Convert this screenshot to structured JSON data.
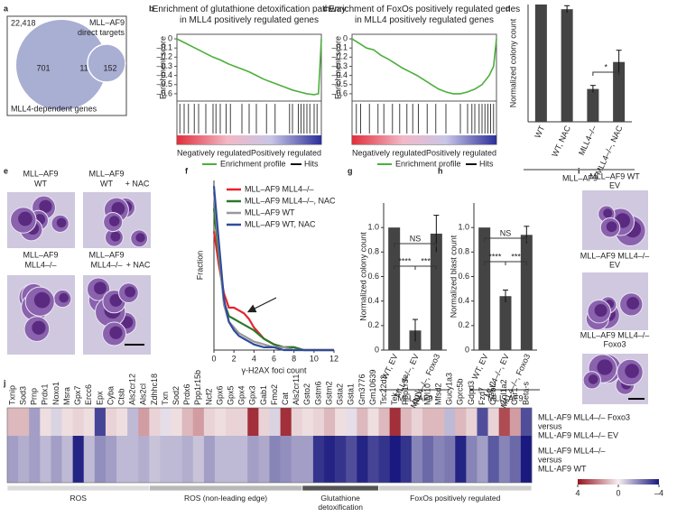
{
  "panel_labels": [
    "a",
    "b",
    "c",
    "d",
    "e",
    "f",
    "g",
    "h",
    "i",
    "j"
  ],
  "venn": {
    "total": "22,418",
    "targets_label": "MLL–AF9 direct targets",
    "dependent_label": "MLL4-dependent genes",
    "counts": [
      701,
      11,
      152
    ]
  },
  "micrographs_e": {
    "labels": [
      [
        "MLL–AF9",
        "WT"
      ],
      [
        "MLL–AF9",
        "WT"
      ],
      [
        "MLL–AF9",
        "MLL4–/–"
      ],
      [
        "MLL–AF9",
        "MLL4–/–"
      ]
    ],
    "treatments": [
      "+ NAC",
      "+ NAC"
    ]
  },
  "micrographs_i": {
    "labels": [
      [
        "MLL–AF9 WT",
        "EV"
      ],
      [
        "MLL–AF9 MLL4–/–",
        "EV"
      ],
      [
        "MLL–AF9 MLL4–/–",
        "Foxo3"
      ]
    ]
  },
  "chart_data": [
    {
      "type": "gsea",
      "title": "Enrichment of glutathione detoxification pathway  in MLL4 positively regulated genes",
      "ylabel": "Enrichment score",
      "x": [
        0,
        5,
        10,
        15,
        20,
        25,
        30,
        35,
        40,
        45,
        50,
        55,
        60,
        65,
        70,
        75,
        80,
        85,
        90,
        95,
        98,
        100
      ],
      "values": [
        0,
        -0.04,
        -0.08,
        -0.12,
        -0.16,
        -0.2,
        -0.23,
        -0.27,
        -0.3,
        -0.33,
        -0.36,
        -0.4,
        -0.44,
        -0.47,
        -0.5,
        -0.53,
        -0.56,
        -0.58,
        -0.6,
        -0.61,
        -0.6,
        0
      ],
      "hits": [
        2,
        5,
        8,
        12,
        15,
        20,
        25,
        27,
        30,
        34,
        37,
        45,
        50,
        55,
        62,
        68,
        78,
        80,
        84,
        86,
        88,
        90,
        92,
        95,
        97
      ],
      "xlim": [
        0,
        100
      ],
      "ylim": [
        -0.68,
        0.05
      ],
      "yticks": [
        0,
        {
          "value": -0.1,
          "label": "–0.1"
        },
        {
          "value": -0.2,
          "label": "–0.2"
        },
        {
          "value": -0.3,
          "label": "–0.3"
        },
        {
          "value": -0.4,
          "label": "–0.4"
        },
        {
          "value": -0.5,
          "label": "–0.5"
        },
        {
          "value": -0.6,
          "label": "–0.6"
        }
      ],
      "color": "#4caf3c",
      "legend": {
        "negative": "Negatively regulated",
        "positive": "Positively regulated",
        "profile": "Enrichment profile",
        "hits": "Hits"
      }
    },
    {
      "type": "gsea",
      "title": "Enrichment of FoxOs positively regulated genes in MLL4 positively regulated genes",
      "ylabel": "Enrichment score",
      "x": [
        0,
        5,
        10,
        15,
        20,
        25,
        30,
        35,
        40,
        45,
        50,
        55,
        60,
        65,
        70,
        75,
        80,
        85,
        90,
        95,
        98,
        100
      ],
      "values": [
        0,
        -0.05,
        -0.1,
        -0.12,
        -0.18,
        -0.22,
        -0.27,
        -0.32,
        -0.36,
        -0.4,
        -0.45,
        -0.5,
        -0.55,
        -0.58,
        -0.6,
        -0.6,
        -0.58,
        -0.55,
        -0.5,
        -0.4,
        -0.3,
        0
      ],
      "hits": [
        3,
        6,
        12,
        18,
        22,
        28,
        33,
        38,
        42,
        46,
        52,
        58,
        65,
        75,
        80,
        83,
        85,
        88,
        90,
        92,
        94,
        96,
        98
      ],
      "xlim": [
        0,
        100
      ],
      "ylim": [
        -0.68,
        0.05
      ],
      "yticks": [
        0,
        {
          "value": -0.1,
          "label": "–0.1"
        },
        {
          "value": -0.2,
          "label": "–0.2"
        },
        {
          "value": -0.3,
          "label": "–0.3"
        },
        {
          "value": -0.4,
          "label": "–0.4"
        },
        {
          "value": -0.5,
          "label": "–0.5"
        },
        {
          "value": -0.6,
          "label": "–0.6"
        }
      ],
      "color": "#4caf3c",
      "legend": {
        "negative": "Negatively regulated",
        "positive": "Positively regulated",
        "profile": "Enrichment profile",
        "hits": "Hits"
      }
    },
    {
      "type": "bar",
      "ylabel": "Normalized colony count",
      "categories": [
        "WT",
        "WT, NAC",
        "MLL4–/–",
        "MLL4–/–, NAC"
      ],
      "values": [
        1.0,
        0.96,
        0.28,
        0.51
      ],
      "errors": [
        0,
        0.03,
        0.03,
        0.1
      ],
      "ylim": [
        0,
        1
      ],
      "color": "#444444",
      "group": "MLL–AF9",
      "annotations": [
        "*"
      ]
    },
    {
      "type": "line",
      "ylabel": "Fraction",
      "xlabel": "γ-H2AX foci count",
      "x": [
        0,
        0.5,
        1,
        1.5,
        2,
        2.5,
        3,
        3.5,
        4,
        5,
        6,
        7,
        8,
        9,
        10,
        11,
        12
      ],
      "xlim": [
        0,
        12
      ],
      "xticks": [
        0,
        2,
        4,
        6,
        8,
        10,
        12
      ],
      "ylim": [
        0,
        0.6
      ],
      "series": [
        {
          "name": "MLL–AF9 MLL4–/–",
          "color": "#e8232d",
          "values": [
            0.42,
            0.3,
            0.2,
            0.15,
            0.15,
            0.14,
            0.13,
            0.11,
            0.08,
            0.04,
            0.02,
            0.01,
            0.01,
            0,
            0,
            0,
            0
          ]
        },
        {
          "name": "MLL–AF9 MLL4–/–, NAC",
          "color": "#2a7a2a",
          "values": [
            0.5,
            0.33,
            0.17,
            0.12,
            0.11,
            0.1,
            0.09,
            0.08,
            0.07,
            0.04,
            0.02,
            0.01,
            0.01,
            0,
            0,
            0,
            0
          ]
        },
        {
          "name": "MLL–AF9 WT",
          "color": "#999999",
          "values": [
            0.56,
            0.35,
            0.16,
            0.1,
            0.08,
            0.06,
            0.05,
            0.04,
            0.03,
            0.02,
            0.01,
            0.01,
            0,
            0,
            0,
            0,
            0
          ]
        },
        {
          "name": "MLL–AF9 WT, NAC",
          "color": "#2f4c9c",
          "values": [
            0.58,
            0.38,
            0.18,
            0.1,
            0.07,
            0.05,
            0.04,
            0.03,
            0.02,
            0.01,
            0.01,
            0,
            0,
            0,
            0,
            0,
            0
          ]
        }
      ]
    },
    {
      "type": "bar",
      "ylabel": "Normalized colony count",
      "categories": [
        "WT, EV",
        "MLL4–/–, EV",
        "MLL4–/–, Foxo3"
      ],
      "values": [
        1.0,
        0.16,
        0.95
      ],
      "errors": [
        0,
        0.09,
        0.15
      ],
      "ylim": [
        0,
        1.2
      ],
      "yticks": [
        0,
        0.2,
        0.4,
        0.6,
        0.8,
        {
          "value": 1.0,
          "label": "1.0"
        }
      ],
      "color": "#444444",
      "group": "MLL–AF9",
      "annotations": [
        "NS",
        "****",
        "***"
      ]
    },
    {
      "type": "bar",
      "ylabel": "Normalized blast count",
      "categories": [
        "WT, EV",
        "MLL4–/–, EV",
        "MLL4–/–, Foxo3"
      ],
      "values": [
        1.0,
        0.44,
        0.94
      ],
      "errors": [
        0,
        0.05,
        0.07
      ],
      "ylim": [
        0,
        1.2
      ],
      "yticks": [
        0,
        0.2,
        0.4,
        0.6,
        0.8,
        {
          "value": 1.0,
          "label": "1.0"
        }
      ],
      "color": "#444444",
      "group": "MLL–AF9",
      "annotations": [
        "NS",
        "****",
        "***"
      ]
    },
    {
      "type": "heatmap",
      "columns": [
        "Txnip",
        "Sod3",
        "Prnp",
        "Prdx1",
        "Noxo1",
        "Msra",
        "Gpx7",
        "Ercc6",
        "Epx",
        "Cyba",
        "Ctsb",
        "Als2cr12",
        "Als2cl",
        "Zdhhc18",
        "Txn",
        "Sod2",
        "Prdx6",
        "Ppp1r15b",
        "Ncf2",
        "Gpx6",
        "Gpx5",
        "Gpx4",
        "Gpx3",
        "Gab1",
        "Fmo2",
        "Cat",
        "Als2cr11",
        "Gsto2",
        "Gstm6",
        "Gstm2",
        "Gsta2",
        "Gsta1",
        "Gm3776",
        "Gm10639",
        "Tsc22d3",
        "Tek",
        "Ppp1r3e",
        "Npy",
        "Myl10",
        "Mfsd2",
        "Gucy1a3",
        "Gprc5b",
        "Gdpd3",
        "Fzd7",
        "Crebl2",
        "Col1a2",
        "Car1",
        "Beta-s"
      ],
      "rows": [
        {
          "label": [
            "MLL-AF9 MLL4–/– Foxo3",
            "versus",
            "MLL-AF9 MLL4–/– EV"
          ],
          "values": [
            1,
            1,
            -1.5,
            0.3,
            -0.5,
            0.3,
            0.5,
            0.3,
            -3.2,
            0.5,
            0.3,
            -1,
            1.5,
            0.5,
            -0.3,
            0.3,
            1,
            1.5,
            0.5,
            0.3,
            0.5,
            0.5,
            3.5,
            0.5,
            -0.5,
            3.5,
            0.5,
            0.3,
            0.5,
            1,
            0.3,
            -0.3,
            1,
            0.3,
            1,
            3.5,
            1,
            0.5,
            1,
            1,
            -1,
            1,
            0.5,
            -3,
            0.5,
            3,
            1.5,
            -3
          ]
        },
        {
          "label": [
            "MLL-AF9 MLL4–/–",
            "versus",
            "MLL-AF9 WT"
          ],
          "values": [
            -1.5,
            -1.2,
            -1.5,
            -1,
            -1.5,
            -1,
            -3.8,
            -1,
            -1.8,
            -1.5,
            -1,
            -1,
            -1.2,
            -0.8,
            -1,
            -1,
            -1.2,
            -0.8,
            -1.5,
            -1,
            -1,
            -1,
            -1.5,
            -1.3,
            -2,
            -1.8,
            -1.5,
            -1.5,
            -3.5,
            -3.8,
            -3.5,
            -3,
            -3.8,
            -3.2,
            -3.5,
            -4,
            -3.5,
            -2,
            -2.5,
            -2,
            -2.2,
            -3.8,
            -2,
            -1.5,
            -2.8,
            -2,
            -2.5,
            -4
          ]
        }
      ],
      "groups": [
        "ROS",
        "ROS (non-leading edge)",
        "Glutathione detoxification",
        "FoxOs positively regulated"
      ],
      "clim": [
        -4,
        4
      ],
      "colorbar_ticks": [
        4,
        0,
        {
          "value": -4,
          "label": "–4"
        }
      ]
    }
  ]
}
